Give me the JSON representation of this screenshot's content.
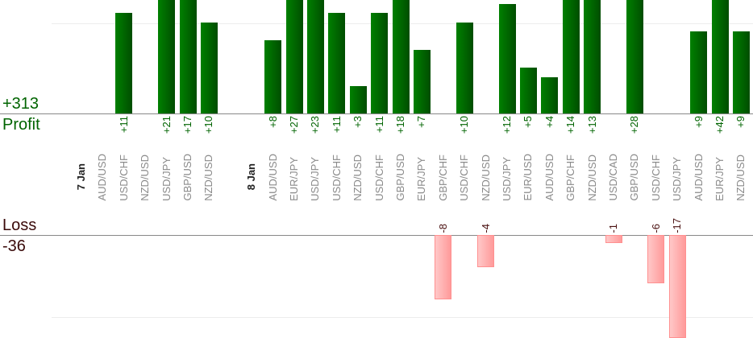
{
  "colors": {
    "profit": "#006400",
    "loss": "#4a1010",
    "profit_bar": "#007000",
    "loss_bar": "#ffb0b0"
  },
  "chart_data": {
    "type": "bar",
    "title": "",
    "profit_label": "Profit",
    "profit_total": "+313",
    "loss_label": "Loss",
    "loss_total": "-36",
    "grid": true,
    "columns": [
      {
        "slot": 0,
        "label": "7 Jan",
        "date": true
      },
      {
        "slot": 1,
        "label": "AUD/USD",
        "value": null
      },
      {
        "slot": 2,
        "label": "USD/CHF",
        "value": 11
      },
      {
        "slot": 3,
        "label": "NZD/USD",
        "value": null
      },
      {
        "slot": 4,
        "label": "USD/JPY",
        "value": 21
      },
      {
        "slot": 5,
        "label": "GBP/USD",
        "value": 17
      },
      {
        "slot": 6,
        "label": "NZD/USD",
        "value": 10
      },
      {
        "slot": 8,
        "label": "8 Jan",
        "date": true
      },
      {
        "slot": 9,
        "label": "AUD/USD",
        "value": 8
      },
      {
        "slot": 10,
        "label": "EUR/JPY",
        "value": 27
      },
      {
        "slot": 11,
        "label": "USD/JPY",
        "value": 23
      },
      {
        "slot": 12,
        "label": "USD/CHF",
        "value": 11
      },
      {
        "slot": 13,
        "label": "NZD/USD",
        "value": 3
      },
      {
        "slot": 14,
        "label": "USD/CHF",
        "value": 11
      },
      {
        "slot": 15,
        "label": "GBP/USD",
        "value": 18
      },
      {
        "slot": 16,
        "label": "EUR/JPY",
        "value": 7
      },
      {
        "slot": 17,
        "label": "GBP/CHF",
        "value": -8
      },
      {
        "slot": 18,
        "label": "USD/CHF",
        "value": 10
      },
      {
        "slot": 19,
        "label": "NZD/USD",
        "value": -4
      },
      {
        "slot": 20,
        "label": "USD/JPY",
        "value": 12
      },
      {
        "slot": 21,
        "label": "EUR/USD",
        "value": 5
      },
      {
        "slot": 22,
        "label": "AUD/USD",
        "value": 4
      },
      {
        "slot": 23,
        "label": "GBP/CHF",
        "value": 14
      },
      {
        "slot": 24,
        "label": "NZD/USD",
        "value": 13
      },
      {
        "slot": 25,
        "label": "USD/CAD",
        "value": -1
      },
      {
        "slot": 26,
        "label": "GBP/USD",
        "value": 28
      },
      {
        "slot": 27,
        "label": "USD/CHF",
        "value": -6
      },
      {
        "slot": 28,
        "label": "USD/JPY",
        "value": -17
      },
      {
        "slot": 29,
        "label": "AUD/USD",
        "value": 9
      },
      {
        "slot": 30,
        "label": "EUR/JPY",
        "value": 42
      },
      {
        "slot": 31,
        "label": "NZD/USD",
        "value": 9
      }
    ]
  }
}
